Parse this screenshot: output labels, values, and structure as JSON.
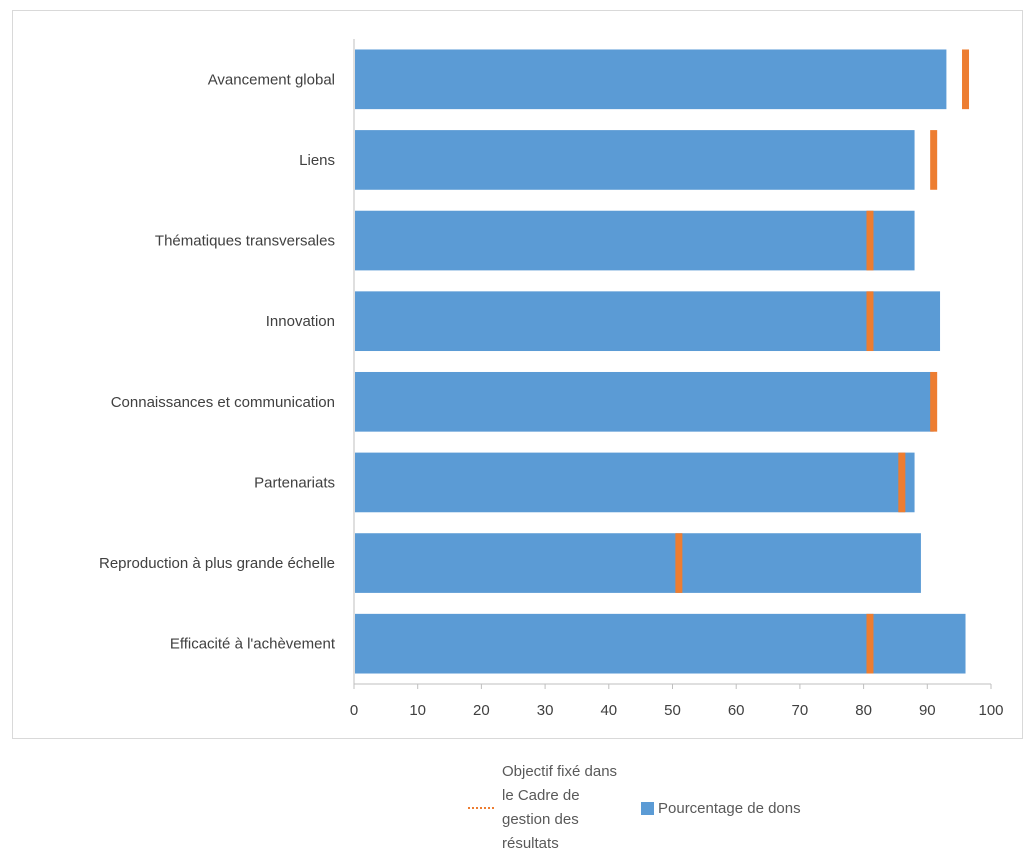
{
  "chart_data": {
    "type": "bar",
    "orientation": "horizontal",
    "categories": [
      "Avancement global",
      "Liens",
      "Thématiques transversales",
      "Innovation",
      "Connaissances et communication",
      "Partenariats",
      "Reproduction à plus grande échelle",
      "Efficacité à l'achèvement"
    ],
    "series": [
      {
        "name": "Pourcentage de dons",
        "values": [
          93,
          88,
          88,
          92,
          91,
          88,
          89,
          96
        ],
        "color": "#5B9BD5"
      },
      {
        "name": "Objectif fixé dans le Cadre de gestion des résultats",
        "values": [
          96,
          91,
          81,
          81,
          91,
          86,
          51,
          81
        ],
        "color": "#ED7D31"
      }
    ],
    "xlim": [
      0,
      100
    ],
    "xticks": [
      0,
      10,
      20,
      30,
      40,
      50,
      60,
      70,
      80,
      90,
      100
    ],
    "title": "",
    "xlabel": "",
    "ylabel": "",
    "grid": false,
    "legend_position": "bottom"
  },
  "legend": {
    "target_label": "Objectif fixé dans le Cadre de gestion des résultats",
    "bar_label": "Pourcentage de dons"
  }
}
